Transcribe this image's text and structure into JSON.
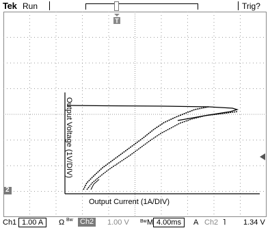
{
  "header": {
    "brand": "Tek",
    "run_state": "Run",
    "trigger_state": "Trig?"
  },
  "display": {
    "ground_marker": "2",
    "y_axis_label": "Output Voltage (1V/DIV)",
    "x_axis_label": "Output Current (1A/DIV)",
    "trace_color": "#000000",
    "grid_color": "#9a9a9a"
  },
  "status": {
    "ch1_label": "Ch1",
    "ch1_scale": "1.00 A",
    "ch1_units": "Ω",
    "ch1_coupling": "Bw",
    "ch2_label": "Ch2",
    "ch2_scale": "1.00 V",
    "mid_marker": "Bw",
    "timebase_prefix": "M",
    "timebase": "4.00ms",
    "trigger_mode": "A",
    "trigger_source": "Ch2",
    "trigger_slope": "˥",
    "trigger_level": "1.34 V"
  }
}
